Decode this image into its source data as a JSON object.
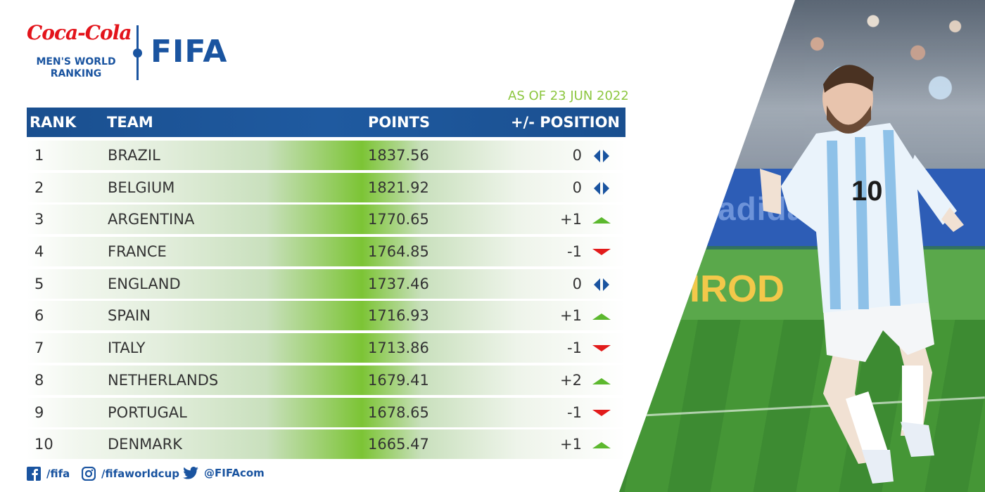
{
  "brand": {
    "sponsor_logo": "Coca-Cola",
    "subtitle_line1": "MEN'S WORLD",
    "subtitle_line2": "RANKING",
    "org_logo": "FIFA"
  },
  "as_of": "AS OF 23 JUN 2022",
  "colors": {
    "header_blue": "#1a54a0",
    "accent_green": "#8cc63f",
    "up_green": "#5cb82e",
    "down_red": "#e21b1b",
    "same_blue": "#1a54a0"
  },
  "table": {
    "headers": {
      "rank": "RANK",
      "team": "TEAM",
      "points": "POINTS",
      "position": "+/- POSITION"
    },
    "rows": [
      {
        "rank": "1",
        "team": "BRAZIL",
        "points": "1837.56",
        "change": "0",
        "trend": "same"
      },
      {
        "rank": "2",
        "team": "BELGIUM",
        "points": "1821.92",
        "change": "0",
        "trend": "same"
      },
      {
        "rank": "3",
        "team": "ARGENTINA",
        "points": "1770.65",
        "change": "+1",
        "trend": "up"
      },
      {
        "rank": "4",
        "team": "FRANCE",
        "points": "1764.85",
        "change": "-1",
        "trend": "down"
      },
      {
        "rank": "5",
        "team": "ENGLAND",
        "points": "1737.46",
        "change": "0",
        "trend": "same"
      },
      {
        "rank": "6",
        "team": "SPAIN",
        "points": "1716.93",
        "change": "+1",
        "trend": "up"
      },
      {
        "rank": "7",
        "team": "ITALY",
        "points": "1713.86",
        "change": "-1",
        "trend": "down"
      },
      {
        "rank": "8",
        "team": "NETHERLANDS",
        "points": "1679.41",
        "change": "+2",
        "trend": "up"
      },
      {
        "rank": "9",
        "team": "PORTUGAL",
        "points": "1678.65",
        "change": "-1",
        "trend": "down"
      },
      {
        "rank": "10",
        "team": "DENMARK",
        "points": "1665.47",
        "change": "+1",
        "trend": "up"
      }
    ]
  },
  "footer": {
    "facebook": {
      "icon": "facebook-icon",
      "handle": "/fifa"
    },
    "instagram": {
      "icon": "instagram-icon",
      "handle": "/fifaworldcup"
    },
    "twitter": {
      "icon": "twitter-icon",
      "handle": "@FIFAcom"
    }
  },
  "photo": {
    "jersey_number": "10",
    "ad_board_blue": "adidas",
    "ad_board_green": "IROD"
  }
}
